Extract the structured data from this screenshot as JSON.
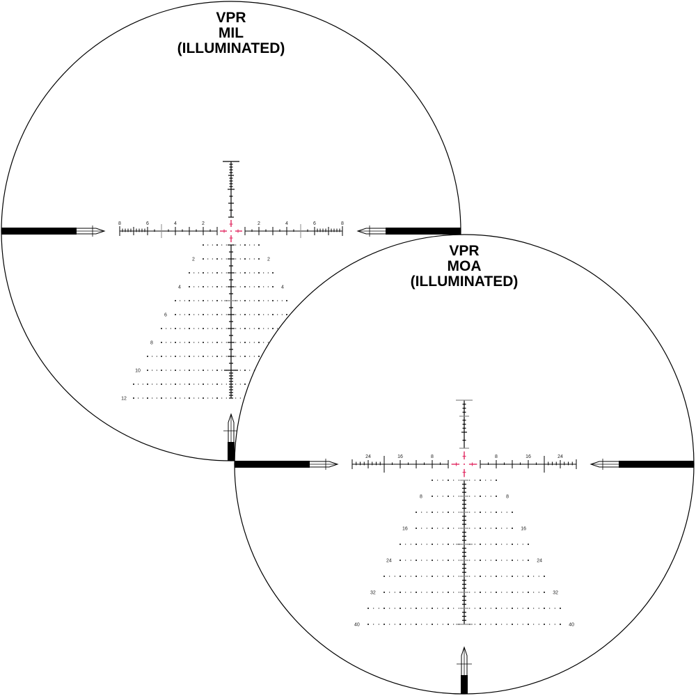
{
  "colors": {
    "reticle": "#000000",
    "illumination": "#e0245e",
    "subtension": "#888888",
    "background": "#ffffff"
  },
  "reticles": [
    {
      "name": "mil",
      "title": [
        "VPR",
        "MIL",
        "(ILLUMINATED)"
      ],
      "windage_labels": [
        "8",
        "6",
        "4",
        "2",
        "2",
        "4",
        "6",
        "8"
      ],
      "holdover_labels": [
        "2",
        "4",
        "6",
        "8",
        "10",
        "12"
      ]
    },
    {
      "name": "moa",
      "title": [
        "VPR",
        "MOA",
        "(ILLUMINATED)"
      ],
      "windage_labels": [
        "24",
        "16",
        "8",
        "8",
        "16",
        "24"
      ],
      "holdover_labels": [
        "8",
        "16",
        "24",
        "32",
        "40"
      ]
    }
  ]
}
